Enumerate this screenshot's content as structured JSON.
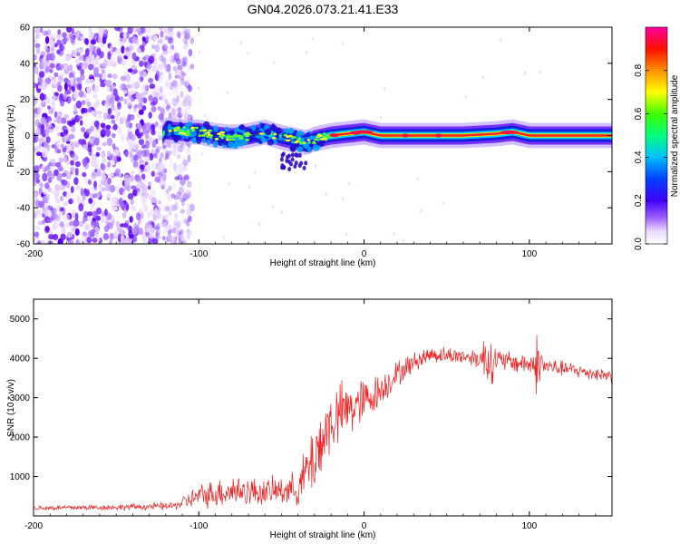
{
  "title": "GN04.2026.073.21.41.E33",
  "chart_data": [
    {
      "type": "heatmap",
      "name": "spectrogram",
      "xlabel": "Height of straight line (km)",
      "ylabel": "Frequency (Hz)",
      "xlim": [
        -200,
        150
      ],
      "ylim": [
        -60,
        60
      ],
      "xticks": [
        -200,
        -100,
        0,
        100
      ],
      "yticks": [
        -60,
        -40,
        -20,
        0,
        20,
        40,
        60
      ],
      "colorbar": {
        "label": "Normalized spectral amplitude",
        "range": [
          0.0,
          1.0
        ],
        "ticks": [
          0.0,
          0.2,
          0.4,
          0.6,
          0.8
        ],
        "tick_labels": [
          "0.0",
          "0.2",
          "0.4",
          "0.6",
          "0.8"
        ]
      },
      "noise_region": {
        "x_from": -200,
        "x_to": -110
      },
      "ridge": [
        {
          "x": -120,
          "f": 3
        },
        {
          "x": -110,
          "f": 2
        },
        {
          "x": -100,
          "f": 2
        },
        {
          "x": -90,
          "f": 0
        },
        {
          "x": -80,
          "f": -1
        },
        {
          "x": -70,
          "f": 0
        },
        {
          "x": -60,
          "f": 2
        },
        {
          "x": -50,
          "f": -1
        },
        {
          "x": -40,
          "f": -3
        },
        {
          "x": -35,
          "f": -4
        },
        {
          "x": -30,
          "f": -2
        },
        {
          "x": -20,
          "f": 0
        },
        {
          "x": -10,
          "f": 1
        },
        {
          "x": 0,
          "f": 2
        },
        {
          "x": 10,
          "f": 0
        },
        {
          "x": 30,
          "f": 0
        },
        {
          "x": 60,
          "f": 0
        },
        {
          "x": 80,
          "f": 1
        },
        {
          "x": 90,
          "f": 2
        },
        {
          "x": 100,
          "f": 0
        },
        {
          "x": 150,
          "f": 0
        }
      ]
    },
    {
      "type": "line",
      "name": "snr",
      "xlabel": "Height of straight line (km)",
      "ylabel": "SNR (10 * v/v)",
      "xlim": [
        -200,
        150
      ],
      "ylim": [
        0,
        5500
      ],
      "xticks": [
        -200,
        -100,
        0,
        100
      ],
      "yticks": [
        1000,
        2000,
        3000,
        4000,
        5000
      ],
      "color": "#ee2222",
      "envelope": [
        {
          "x": -200,
          "mean": 200,
          "amp": 80
        },
        {
          "x": -150,
          "mean": 220,
          "amp": 90
        },
        {
          "x": -115,
          "mean": 250,
          "amp": 120
        },
        {
          "x": -100,
          "mean": 500,
          "amp": 350
        },
        {
          "x": -80,
          "mean": 650,
          "amp": 500
        },
        {
          "x": -60,
          "mean": 600,
          "amp": 400
        },
        {
          "x": -40,
          "mean": 700,
          "amp": 500
        },
        {
          "x": -30,
          "mean": 1500,
          "amp": 1200
        },
        {
          "x": -20,
          "mean": 2400,
          "amp": 1000
        },
        {
          "x": -10,
          "mean": 2700,
          "amp": 900
        },
        {
          "x": 0,
          "mean": 2900,
          "amp": 700
        },
        {
          "x": 10,
          "mean": 3200,
          "amp": 500
        },
        {
          "x": 20,
          "mean": 3600,
          "amp": 400
        },
        {
          "x": 30,
          "mean": 3900,
          "amp": 300
        },
        {
          "x": 40,
          "mean": 4100,
          "amp": 250
        },
        {
          "x": 60,
          "mean": 4050,
          "amp": 250
        },
        {
          "x": 70,
          "mean": 4000,
          "amp": 300
        },
        {
          "x": 75,
          "mean": 4000,
          "amp": 1100
        },
        {
          "x": 80,
          "mean": 3950,
          "amp": 350
        },
        {
          "x": 100,
          "mean": 3850,
          "amp": 300
        },
        {
          "x": 105,
          "mean": 3850,
          "amp": 1000
        },
        {
          "x": 110,
          "mean": 3800,
          "amp": 250
        },
        {
          "x": 150,
          "mean": 3550,
          "amp": 200
        }
      ]
    }
  ]
}
